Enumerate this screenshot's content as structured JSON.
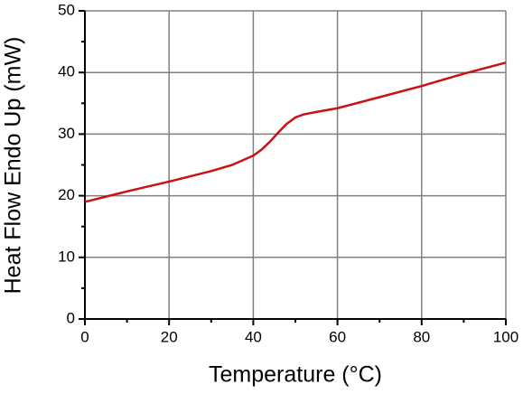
{
  "chart_data": {
    "type": "line",
    "x_label": "Temperature (°C)",
    "y_label": "Heat Flow Endo Up (mW)",
    "x": [
      0,
      10,
      20,
      30,
      35,
      40,
      42,
      44,
      46,
      48,
      50,
      52,
      55,
      60,
      70,
      80,
      90,
      100
    ],
    "series": [
      {
        "color": "#cc1111",
        "values": [
          19,
          20.7,
          22.3,
          24,
          25,
          26.5,
          27.5,
          28.8,
          30.3,
          31.7,
          32.7,
          33.2,
          33.6,
          34.2,
          36,
          37.8,
          39.8,
          41.6
        ]
      }
    ],
    "xlim": [
      0,
      100
    ],
    "xticks": [
      0,
      20,
      40,
      60,
      80,
      100
    ],
    "xminor": [
      10,
      30,
      50,
      70,
      90
    ],
    "ylim": [
      0,
      50
    ],
    "yticks": [
      0,
      10,
      20,
      30,
      40,
      50
    ],
    "yminor": [
      5,
      15,
      25,
      35,
      45
    ],
    "grid": true
  }
}
